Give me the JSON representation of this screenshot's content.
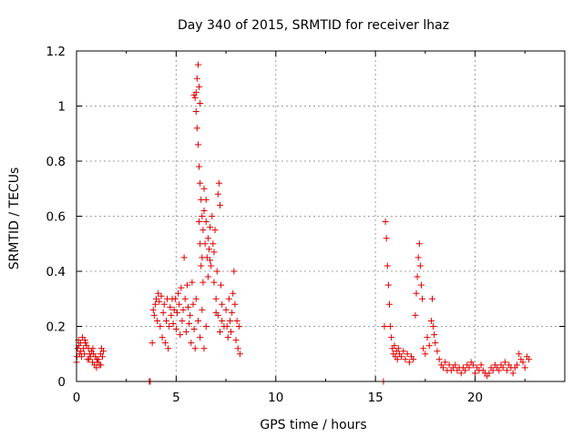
{
  "chart_data": {
    "type": "scatter",
    "title": "Day 340 of 2015, SRMTID for receiver lhaz",
    "xlabel": "GPS time / hours",
    "ylabel": "SRMTID / TECUs",
    "xlim": [
      0,
      24.5
    ],
    "ylim": [
      0,
      1.2
    ],
    "xticks": [
      0,
      5,
      10,
      15,
      20
    ],
    "xtick_labels": [
      "0",
      "5",
      "10",
      "15",
      "20"
    ],
    "yticks": [
      0,
      0.2,
      0.4,
      0.6,
      0.8,
      1.0,
      1.2
    ],
    "ytick_labels": [
      "0",
      "0.2",
      "0.4",
      "0.6",
      "0.8",
      "1",
      "1.2"
    ],
    "grid": true,
    "marker": "+",
    "color": "#e00000",
    "series": [
      {
        "name": "SRMTID",
        "points": [
          [
            0.0,
            0.07
          ],
          [
            0.05,
            0.12
          ],
          [
            0.1,
            0.15
          ],
          [
            0.15,
            0.1
          ],
          [
            0.2,
            0.14
          ],
          [
            0.25,
            0.09
          ],
          [
            0.3,
            0.16
          ],
          [
            0.35,
            0.12
          ],
          [
            0.4,
            0.1
          ],
          [
            0.45,
            0.14
          ],
          [
            0.5,
            0.13
          ],
          [
            0.55,
            0.08
          ],
          [
            0.6,
            0.12
          ],
          [
            0.65,
            0.1
          ],
          [
            0.7,
            0.09
          ],
          [
            0.75,
            0.11
          ],
          [
            0.8,
            0.07
          ],
          [
            0.85,
            0.1
          ],
          [
            0.9,
            0.06
          ],
          [
            0.95,
            0.09
          ],
          [
            1.0,
            0.05
          ],
          [
            1.05,
            0.07
          ],
          [
            1.1,
            0.08
          ],
          [
            1.15,
            0.06
          ],
          [
            1.2,
            0.1
          ],
          [
            1.25,
            0.12
          ],
          [
            1.3,
            0.09
          ],
          [
            1.35,
            0.11
          ],
          [
            0.02,
            0.09
          ],
          [
            0.12,
            0.13
          ],
          [
            0.22,
            0.11
          ],
          [
            0.42,
            0.15
          ],
          [
            0.62,
            0.08
          ],
          [
            0.82,
            0.12
          ],
          [
            1.02,
            0.08
          ],
          [
            1.22,
            0.06
          ],
          [
            3.65,
            0.0
          ],
          [
            3.7,
            0.0
          ],
          [
            3.8,
            0.14
          ],
          [
            3.85,
            0.26
          ],
          [
            3.9,
            0.24
          ],
          [
            3.95,
            0.28
          ],
          [
            4.0,
            0.3
          ],
          [
            4.05,
            0.22
          ],
          [
            4.1,
            0.32
          ],
          [
            4.15,
            0.29
          ],
          [
            4.2,
            0.2
          ],
          [
            4.25,
            0.31
          ],
          [
            4.3,
            0.16
          ],
          [
            4.35,
            0.25
          ],
          [
            4.4,
            0.28
          ],
          [
            4.45,
            0.14
          ],
          [
            4.5,
            0.22
          ],
          [
            4.55,
            0.3
          ],
          [
            4.6,
            0.12
          ],
          [
            4.65,
            0.2
          ],
          [
            4.7,
            0.27
          ],
          [
            4.75,
            0.24
          ],
          [
            4.8,
            0.3
          ],
          [
            4.85,
            0.21
          ],
          [
            4.9,
            0.26
          ],
          [
            4.95,
            0.3
          ],
          [
            5.0,
            0.19
          ],
          [
            5.05,
            0.25
          ],
          [
            5.1,
            0.32
          ],
          [
            5.15,
            0.28
          ],
          [
            5.2,
            0.17
          ],
          [
            5.25,
            0.34
          ],
          [
            5.3,
            0.22
          ],
          [
            5.35,
            0.26
          ],
          [
            5.4,
            0.45
          ],
          [
            5.45,
            0.3
          ],
          [
            5.5,
            0.18
          ],
          [
            5.55,
            0.35
          ],
          [
            5.6,
            0.27
          ],
          [
            5.65,
            0.21
          ],
          [
            5.7,
            0.24
          ],
          [
            5.75,
            0.14
          ],
          [
            5.8,
            0.36
          ],
          [
            5.85,
            0.28
          ],
          [
            5.9,
            0.19
          ],
          [
            5.95,
            0.12
          ],
          [
            5.9,
            1.04
          ],
          [
            5.95,
            1.03
          ],
          [
            6.0,
            1.05
          ],
          [
            6.05,
            1.1
          ],
          [
            6.1,
            1.15
          ],
          [
            6.15,
            1.07
          ],
          [
            6.2,
            1.01
          ],
          [
            6.0,
            0.98
          ],
          [
            6.05,
            0.92
          ],
          [
            6.1,
            0.86
          ],
          [
            6.15,
            0.78
          ],
          [
            6.2,
            0.72
          ],
          [
            6.25,
            0.66
          ],
          [
            6.3,
            0.6
          ],
          [
            6.35,
            0.55
          ],
          [
            6.4,
            0.62
          ],
          [
            6.45,
            0.5
          ],
          [
            6.5,
            0.58
          ],
          [
            6.55,
            0.45
          ],
          [
            6.6,
            0.52
          ],
          [
            6.65,
            0.48
          ],
          [
            6.7,
            0.56
          ],
          [
            6.75,
            0.42
          ],
          [
            6.8,
            0.6
          ],
          [
            6.85,
            0.5
          ],
          [
            6.9,
            0.47
          ],
          [
            6.95,
            0.55
          ],
          [
            7.0,
            0.3
          ],
          [
            7.05,
            0.4
          ],
          [
            7.1,
            0.68
          ],
          [
            7.15,
            0.72
          ],
          [
            7.2,
            0.64
          ],
          [
            7.25,
            0.35
          ],
          [
            7.3,
            0.28
          ],
          [
            6.3,
            0.45
          ],
          [
            6.25,
            0.42
          ],
          [
            6.2,
            0.5
          ],
          [
            6.35,
            0.36
          ],
          [
            6.15,
            0.58
          ],
          [
            6.4,
            0.7
          ],
          [
            6.5,
            0.66
          ],
          [
            6.6,
            0.38
          ],
          [
            6.7,
            0.44
          ],
          [
            6.9,
            0.36
          ],
          [
            7.0,
            0.25
          ],
          [
            6.0,
            0.3
          ],
          [
            6.1,
            0.22
          ],
          [
            6.2,
            0.16
          ],
          [
            6.3,
            0.26
          ],
          [
            6.4,
            0.12
          ],
          [
            6.5,
            0.2
          ],
          [
            7.1,
            0.24
          ],
          [
            7.2,
            0.18
          ],
          [
            7.3,
            0.22
          ],
          [
            7.4,
            0.2
          ],
          [
            7.5,
            0.26
          ],
          [
            7.6,
            0.16
          ],
          [
            7.7,
            0.22
          ],
          [
            7.75,
            0.18
          ],
          [
            7.8,
            0.25
          ],
          [
            7.85,
            0.32
          ],
          [
            7.9,
            0.4
          ],
          [
            7.95,
            0.28
          ],
          [
            8.0,
            0.15
          ],
          [
            8.05,
            0.22
          ],
          [
            8.1,
            0.12
          ],
          [
            8.15,
            0.2
          ],
          [
            8.2,
            0.1
          ],
          [
            7.65,
            0.3
          ],
          [
            7.55,
            0.2
          ],
          [
            15.4,
            0.0
          ],
          [
            15.45,
            0.2
          ],
          [
            15.5,
            0.58
          ],
          [
            15.55,
            0.52
          ],
          [
            15.6,
            0.42
          ],
          [
            15.65,
            0.35
          ],
          [
            15.7,
            0.28
          ],
          [
            15.75,
            0.2
          ],
          [
            15.8,
            0.16
          ],
          [
            15.85,
            0.12
          ],
          [
            15.9,
            0.1
          ],
          [
            15.95,
            0.13
          ],
          [
            16.0,
            0.09
          ],
          [
            16.05,
            0.11
          ],
          [
            16.1,
            0.08
          ],
          [
            16.15,
            0.12
          ],
          [
            16.2,
            0.1
          ],
          [
            16.3,
            0.09
          ],
          [
            16.4,
            0.11
          ],
          [
            16.5,
            0.08
          ],
          [
            16.6,
            0.1
          ],
          [
            16.7,
            0.07
          ],
          [
            16.8,
            0.09
          ],
          [
            16.9,
            0.08
          ],
          [
            17.0,
            0.24
          ],
          [
            17.05,
            0.32
          ],
          [
            17.1,
            0.38
          ],
          [
            17.15,
            0.45
          ],
          [
            17.2,
            0.5
          ],
          [
            17.25,
            0.42
          ],
          [
            17.3,
            0.35
          ],
          [
            17.35,
            0.3
          ],
          [
            17.4,
            0.12
          ],
          [
            17.5,
            0.1
          ],
          [
            17.6,
            0.16
          ],
          [
            17.7,
            0.13
          ],
          [
            17.8,
            0.22
          ],
          [
            17.85,
            0.3
          ],
          [
            17.9,
            0.2
          ],
          [
            17.95,
            0.17
          ],
          [
            18.0,
            0.14
          ],
          [
            18.1,
            0.11
          ],
          [
            18.2,
            0.08
          ],
          [
            18.3,
            0.06
          ],
          [
            18.4,
            0.05
          ],
          [
            18.5,
            0.07
          ],
          [
            18.6,
            0.04
          ],
          [
            18.7,
            0.06
          ],
          [
            18.8,
            0.04
          ],
          [
            18.9,
            0.05
          ],
          [
            19.0,
            0.06
          ],
          [
            19.1,
            0.04
          ],
          [
            19.2,
            0.05
          ],
          [
            19.3,
            0.03
          ],
          [
            19.4,
            0.05
          ],
          [
            19.5,
            0.04
          ],
          [
            19.6,
            0.06
          ],
          [
            19.7,
            0.05
          ],
          [
            19.8,
            0.07
          ],
          [
            19.9,
            0.06
          ],
          [
            20.0,
            0.03
          ],
          [
            20.1,
            0.05
          ],
          [
            20.2,
            0.04
          ],
          [
            20.3,
            0.06
          ],
          [
            20.4,
            0.04
          ],
          [
            20.5,
            0.03
          ],
          [
            20.6,
            0.02
          ],
          [
            20.7,
            0.03
          ],
          [
            20.8,
            0.05
          ],
          [
            20.9,
            0.04
          ],
          [
            21.0,
            0.06
          ],
          [
            21.1,
            0.05
          ],
          [
            21.2,
            0.04
          ],
          [
            21.3,
            0.06
          ],
          [
            21.4,
            0.05
          ],
          [
            21.5,
            0.07
          ],
          [
            21.6,
            0.04
          ],
          [
            21.7,
            0.06
          ],
          [
            21.8,
            0.05
          ],
          [
            21.9,
            0.03
          ],
          [
            22.0,
            0.05
          ],
          [
            22.1,
            0.06
          ],
          [
            22.2,
            0.1
          ],
          [
            22.3,
            0.08
          ],
          [
            22.4,
            0.07
          ],
          [
            22.5,
            0.05
          ],
          [
            22.6,
            0.09
          ],
          [
            22.7,
            0.08
          ]
        ]
      }
    ]
  }
}
